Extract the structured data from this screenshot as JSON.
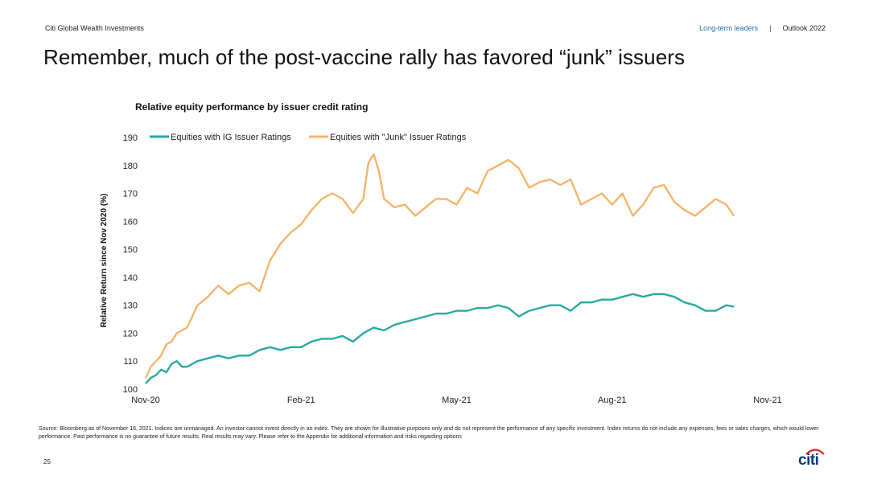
{
  "header": {
    "brand": "Citi Global Wealth Investments",
    "nav_active": "Long-term leaders",
    "nav_separator": "|",
    "nav_other": "Outlook 2022"
  },
  "page_title": "Remember, much of the post-vaccine rally has favored “junk” issuers",
  "footer": {
    "source": "Source: Bloomberg as of November 16, 2021. Indices are unmanaged. An investor cannot invest directly in an index. They are shown for illustrative purposes only and do not represent the performance of any specific investment. Index returns do not include any expenses, fees or sales charges, which would lower performance. Past performance is no guarantee of future results. Real results may vary. Please refer to the Appendix for additional information and risks regarding options",
    "page_number": "25",
    "logo_text": "citi"
  },
  "colors": {
    "ig": "#2ba8a4",
    "junk": "#f5b56b",
    "accent": "#1f6fb2",
    "logo": "#0a3b7a",
    "logo_arc": "#d9261c"
  },
  "chart_data": {
    "type": "line",
    "title": "Relative equity performance by issuer credit rating",
    "xlabel": "",
    "ylabel": "Relative Return since Nov 2020 (%)",
    "ylim": [
      100,
      190
    ],
    "yticks": [
      100,
      110,
      120,
      130,
      140,
      150,
      160,
      170,
      180,
      190
    ],
    "xlim": [
      0,
      12
    ],
    "xticks": [
      0,
      3,
      6,
      9,
      12
    ],
    "xtick_labels": [
      "Nov-20",
      "Feb-21",
      "May-21",
      "Aug-21",
      "Nov-21"
    ],
    "legend_position": "top-left",
    "series": [
      {
        "name": "Equities with IG Issuer Ratings",
        "color": "#2ba8a4",
        "x": [
          0.0,
          0.1,
          0.2,
          0.3,
          0.4,
          0.5,
          0.6,
          0.7,
          0.8,
          0.9,
          1.0,
          1.2,
          1.4,
          1.6,
          1.8,
          2.0,
          2.2,
          2.4,
          2.6,
          2.8,
          3.0,
          3.2,
          3.4,
          3.6,
          3.8,
          4.0,
          4.2,
          4.4,
          4.6,
          4.8,
          5.0,
          5.2,
          5.4,
          5.6,
          5.8,
          6.0,
          6.2,
          6.4,
          6.6,
          6.8,
          7.0,
          7.2,
          7.4,
          7.6,
          7.8,
          8.0,
          8.2,
          8.4,
          8.6,
          8.8,
          9.0,
          9.2,
          9.4,
          9.6,
          9.8,
          10.0,
          10.2,
          10.4,
          10.6,
          10.8,
          11.0,
          11.2,
          11.35
        ],
        "values": [
          102,
          104,
          105,
          107,
          106,
          109,
          110,
          108,
          108,
          109,
          110,
          111,
          112,
          111,
          112,
          112,
          114,
          115,
          114,
          115,
          115,
          117,
          118,
          118,
          119,
          117,
          120,
          122,
          121,
          123,
          124,
          125,
          126,
          127,
          127,
          128,
          128,
          129,
          129,
          130,
          129,
          126,
          128,
          129,
          130,
          130,
          128,
          131,
          131,
          132,
          132,
          133,
          134,
          133,
          134,
          134,
          133,
          131,
          130,
          128,
          128,
          130,
          129.5
        ]
      },
      {
        "name": "Equities with \"Junk\" Issuer Ratings",
        "color": "#f5b56b",
        "x": [
          0.0,
          0.1,
          0.2,
          0.3,
          0.4,
          0.5,
          0.6,
          0.8,
          1.0,
          1.2,
          1.4,
          1.6,
          1.8,
          2.0,
          2.2,
          2.4,
          2.6,
          2.8,
          3.0,
          3.2,
          3.4,
          3.6,
          3.8,
          4.0,
          4.2,
          4.25,
          4.3,
          4.4,
          4.5,
          4.6,
          4.8,
          5.0,
          5.2,
          5.4,
          5.6,
          5.8,
          6.0,
          6.2,
          6.4,
          6.6,
          6.8,
          7.0,
          7.2,
          7.4,
          7.6,
          7.8,
          8.0,
          8.2,
          8.4,
          8.6,
          8.8,
          9.0,
          9.2,
          9.4,
          9.6,
          9.8,
          10.0,
          10.2,
          10.4,
          10.6,
          10.8,
          11.0,
          11.2,
          11.35
        ],
        "values": [
          104,
          108,
          110,
          112,
          116,
          117,
          120,
          122,
          130,
          133,
          137,
          134,
          137,
          138,
          135,
          146,
          152,
          156,
          159,
          164,
          168,
          170,
          168,
          163,
          168,
          175,
          181,
          184,
          178,
          168,
          165,
          166,
          162,
          165,
          168,
          168,
          166,
          172,
          170,
          178,
          180,
          182,
          179,
          172,
          174,
          175,
          173,
          175,
          166,
          168,
          170,
          166,
          170,
          162,
          166,
          172,
          173,
          167,
          164,
          162,
          165,
          168,
          166,
          162
        ]
      }
    ]
  }
}
